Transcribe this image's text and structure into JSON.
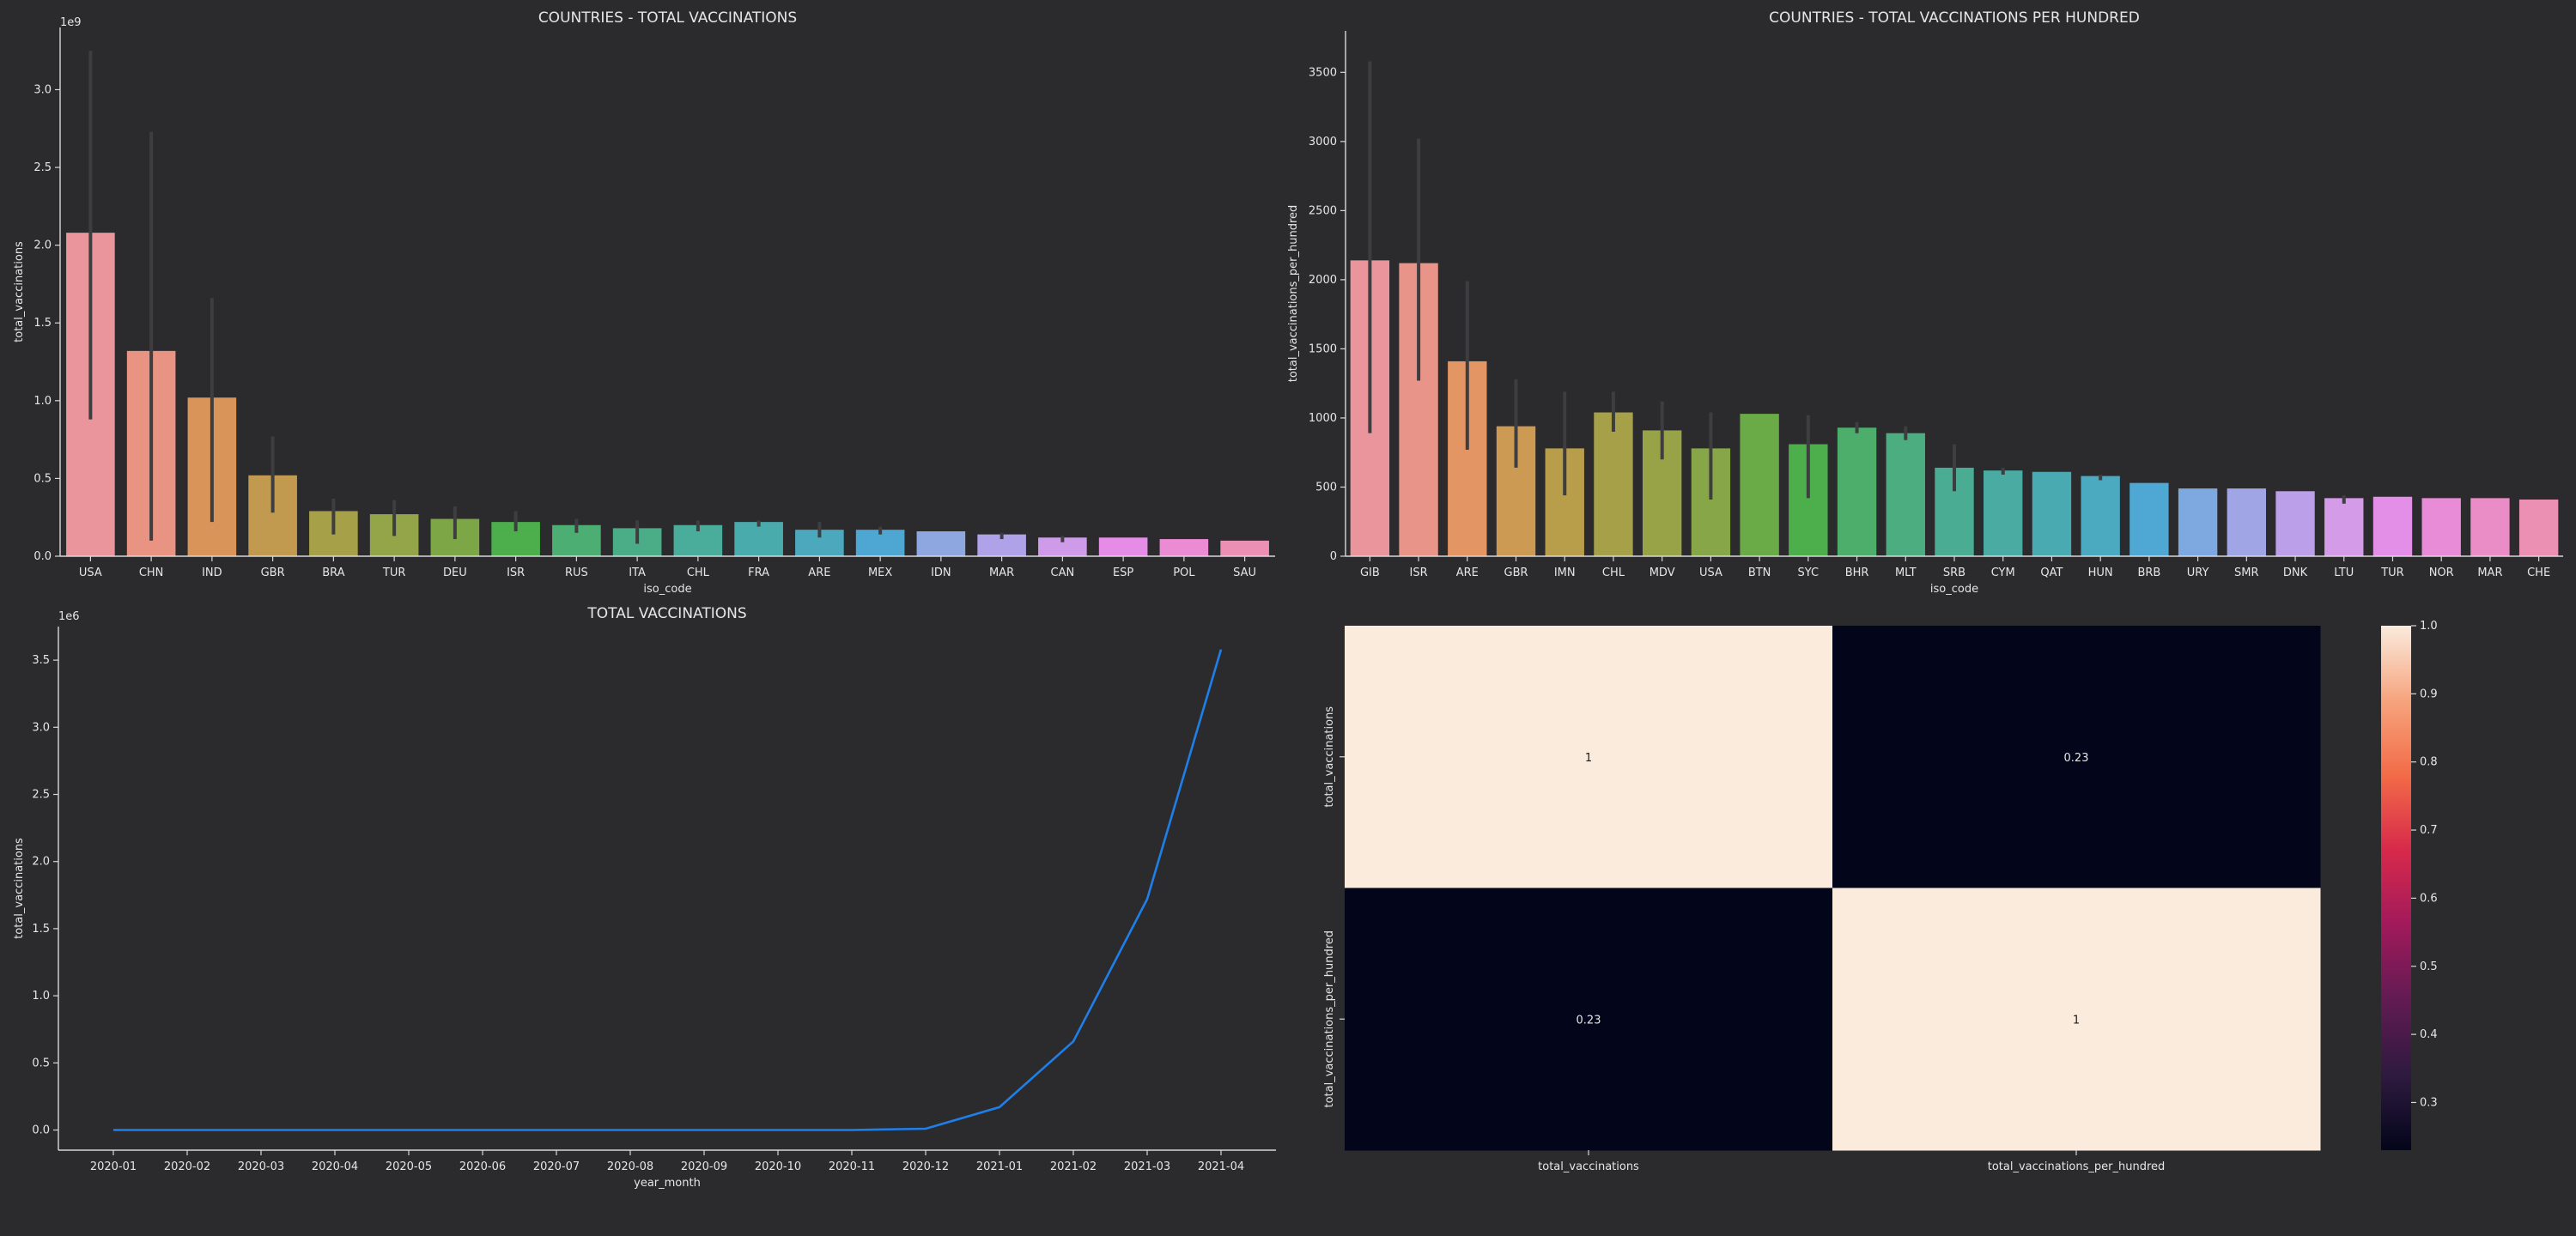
{
  "chart_data": [
    {
      "type": "bar",
      "title": "COUNTRIES - TOTAL VACCINATIONS",
      "xlabel": "iso_code",
      "ylabel": "total_vaccinations",
      "y_multiplier_label": "1e9",
      "ylim": [
        0,
        3.4
      ],
      "yticks": [
        0.0,
        0.5,
        1.0,
        1.5,
        2.0,
        2.5,
        3.0
      ],
      "ytick_labels": [
        "0.0",
        "0.5",
        "1.0",
        "1.5",
        "2.0",
        "2.5",
        "3.0"
      ],
      "categories": [
        "USA",
        "CHN",
        "IND",
        "GBR",
        "BRA",
        "TUR",
        "DEU",
        "ISR",
        "RUS",
        "ITA",
        "CHL",
        "FRA",
        "ARE",
        "MEX",
        "IDN",
        "MAR",
        "CAN",
        "ESP",
        "POL",
        "SAU"
      ],
      "values": [
        2.08,
        1.32,
        1.02,
        0.52,
        0.29,
        0.27,
        0.24,
        0.22,
        0.2,
        0.18,
        0.2,
        0.22,
        0.17,
        0.17,
        0.16,
        0.14,
        0.12,
        0.12,
        0.11,
        0.1
      ],
      "ci": [
        [
          0.88,
          3.25
        ],
        [
          0.1,
          2.73
        ],
        [
          0.22,
          1.66
        ],
        [
          0.28,
          0.77
        ],
        [
          0.14,
          0.37
        ],
        [
          0.13,
          0.36
        ],
        [
          0.11,
          0.32
        ],
        [
          0.16,
          0.29
        ],
        [
          0.15,
          0.24
        ],
        [
          0.08,
          0.23
        ],
        [
          0.16,
          0.23
        ],
        [
          0.19,
          0.23
        ],
        [
          0.12,
          0.22
        ],
        [
          0.14,
          0.19
        ],
        [
          0.16,
          0.16
        ],
        [
          0.11,
          0.15
        ],
        [
          0.09,
          0.13
        ],
        [
          0.12,
          0.12
        ],
        [
          0.11,
          0.11
        ],
        [
          0.1,
          0.1
        ]
      ],
      "colors": [
        "#e9959b",
        "#e99483",
        "#d9945a",
        "#c19a50",
        "#a6a048",
        "#94a549",
        "#7da747",
        "#4caf4c",
        "#4cae72",
        "#4bad87",
        "#4aac9a",
        "#4aabac",
        "#4ca9bd",
        "#4ea7d3",
        "#8fa7e0",
        "#b0a2e8",
        "#cf9be8",
        "#e58ce6",
        "#ea8bd3",
        "#eb90b4"
      ],
      "grid": false
    },
    {
      "type": "bar",
      "title": "COUNTRIES - TOTAL VACCINATIONS PER HUNDRED",
      "xlabel": "iso_code",
      "ylabel": "total_vaccinations_per_hundred",
      "ylim": [
        0,
        3800
      ],
      "yticks": [
        0,
        500,
        1000,
        1500,
        2000,
        2500,
        3000,
        3500
      ],
      "ytick_labels": [
        "0",
        "500",
        "1000",
        "1500",
        "2000",
        "2500",
        "3000",
        "3500"
      ],
      "categories": [
        "GIB",
        "ISR",
        "ARE",
        "GBR",
        "IMN",
        "CHL",
        "MDV",
        "USA",
        "BTN",
        "SYC",
        "BHR",
        "MLT",
        "SRB",
        "CYM",
        "QAT",
        "HUN",
        "BRB",
        "URY",
        "SMR",
        "DNK",
        "LTU",
        "TUR",
        "NOR",
        "MAR",
        "CHE"
      ],
      "values": [
        2140,
        2120,
        1410,
        940,
        780,
        1040,
        910,
        780,
        1030,
        810,
        930,
        890,
        640,
        620,
        610,
        580,
        530,
        490,
        490,
        470,
        420,
        430,
        420,
        420,
        410
      ],
      "ci": [
        [
          890,
          3580
        ],
        [
          1270,
          3020
        ],
        [
          770,
          1990
        ],
        [
          640,
          1280
        ],
        [
          440,
          1190
        ],
        [
          900,
          1190
        ],
        [
          700,
          1120
        ],
        [
          410,
          1040
        ],
        [
          1030,
          1030
        ],
        [
          420,
          1020
        ],
        [
          890,
          970
        ],
        [
          840,
          940
        ],
        [
          470,
          810
        ],
        [
          590,
          640
        ],
        [
          610,
          610
        ],
        [
          550,
          590
        ],
        [
          530,
          530
        ],
        [
          490,
          490
        ],
        [
          490,
          490
        ],
        [
          470,
          470
        ],
        [
          380,
          440
        ],
        [
          430,
          430
        ],
        [
          420,
          420
        ],
        [
          420,
          420
        ],
        [
          410,
          410
        ]
      ],
      "colors": [
        "#e9959b",
        "#e99488",
        "#e39563",
        "#cc9a52",
        "#b89d4b",
        "#a6a048",
        "#98a247",
        "#86a648",
        "#6aaa47",
        "#4caf4c",
        "#4cae6a",
        "#4bad80",
        "#4aac93",
        "#4aaba3",
        "#4aaab2",
        "#4ba9c0",
        "#4ea8d3",
        "#7ea8e0",
        "#a0a5e6",
        "#bba0e9",
        "#d49be9",
        "#e48fe7",
        "#e98cd8",
        "#ea8dc6",
        "#eb90b2"
      ],
      "grid": false
    },
    {
      "type": "line",
      "title": "TOTAL VACCINATIONS",
      "xlabel": "year_month",
      "ylabel": "total_vaccinations",
      "y_multiplier_label": "1e6",
      "ylim": [
        -0.15,
        3.75
      ],
      "yticks": [
        0.0,
        0.5,
        1.0,
        1.5,
        2.0,
        2.5,
        3.0,
        3.5
      ],
      "ytick_labels": [
        "0.0",
        "0.5",
        "1.0",
        "1.5",
        "2.0",
        "2.5",
        "3.0",
        "3.5"
      ],
      "x": [
        "2020-01",
        "2020-02",
        "2020-03",
        "2020-04",
        "2020-05",
        "2020-06",
        "2020-07",
        "2020-08",
        "2020-09",
        "2020-10",
        "2020-11",
        "2020-12",
        "2021-01",
        "2021-02",
        "2021-03",
        "2021-04"
      ],
      "series": [
        {
          "values": [
            0,
            0,
            0,
            0,
            0,
            0,
            0,
            0,
            0,
            0,
            0,
            0.01,
            0.17,
            0.66,
            1.72,
            3.58
          ],
          "color": "#1f7fe8"
        }
      ],
      "grid": false
    },
    {
      "type": "heatmap",
      "x_labels": [
        "total_vaccinations",
        "total_vaccinations_per_hundred"
      ],
      "y_labels": [
        "total_vaccinations",
        "total_vaccinations_per_hundred"
      ],
      "values": [
        [
          1,
          0.23
        ],
        [
          0.23,
          1
        ]
      ],
      "value_labels": [
        [
          "1",
          "0.23"
        ],
        [
          "0.23",
          "1"
        ]
      ],
      "colorbar": {
        "min": 0.23,
        "max": 1.0,
        "ticks": [
          0.3,
          0.4,
          0.5,
          0.6,
          0.7,
          0.8,
          0.9,
          1.0
        ],
        "tick_labels": [
          "0.3",
          "0.4",
          "0.5",
          "0.6",
          "0.7",
          "0.8",
          "0.9",
          "1.0"
        ],
        "colormap": "rocket",
        "stops": [
          "#03051a",
          "#2e1a3f",
          "#611b53",
          "#a11a5b",
          "#d7294b",
          "#f26b47",
          "#f6a47e",
          "#faebdd"
        ]
      }
    }
  ]
}
